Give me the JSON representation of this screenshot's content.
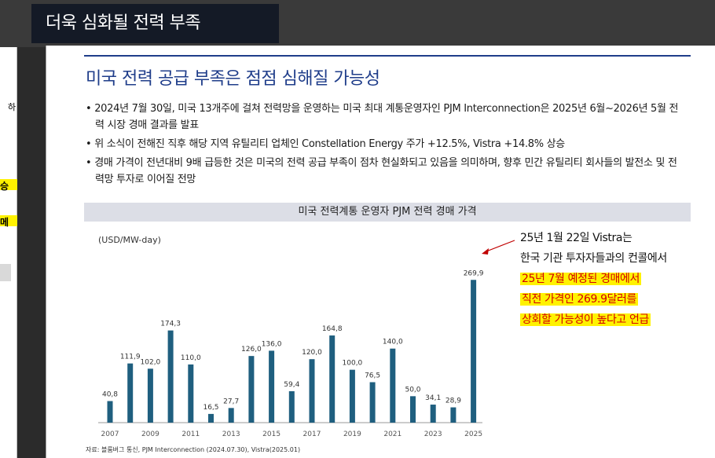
{
  "header": {
    "title": "더욱 심화될 전력 부족"
  },
  "left_panel": {
    "snip1": "하",
    "snip2": "승",
    "snip3": "메"
  },
  "slide": {
    "heading": "미국 전력 공급 부족은 점점 심해질 가능성",
    "bullets": [
      "2024년 7월 30일, 미국 13개주에 걸쳐 전력망을 운영하는 미국 최대 계통운영자인 PJM Interconnection은 2025년 6월~2026년 5월 전력 시장 경매 결과를 발표",
      "위 소식이 전해진 직후 해당 지역 유틸리티 업체인 Constellation Energy 주가 +12.5%, Vistra +14.8% 상승",
      "경매 가격이 전년대비 9배 급등한 것은 미국의 전력 공급 부족이 점차 현실화되고 있음을 의미하며, 향후 민간 유틸리티 회사들의 발전소 및 전력망 투자로 이어질 전망"
    ],
    "source_note": "자료: 블룸버그 통신, PJM Interconnection (2024.07.30), Vistra(2025.01)",
    "callout": {
      "lines": [
        "25년 1월 22일 Vistra는",
        "한국 기관 투자자들과의 컨콜에서"
      ],
      "highlight_lines": [
        "25년 7월 예정된 경매에서",
        "직전 가격인 269.9달러를",
        "상회할 가능성이 높다고 언급"
      ]
    }
  },
  "chart_data": {
    "type": "bar",
    "title": "미국 전력계통 운영자 PJM 전력 경매 가격",
    "unit_label": "(USD/MW-day)",
    "categories": [
      "2007",
      "2008",
      "2009",
      "2010",
      "2011",
      "2012",
      "2013",
      "2014",
      "2015",
      "2016",
      "2017",
      "2018",
      "2019",
      "2020",
      "2021",
      "2022",
      "2023",
      "2024",
      "2025"
    ],
    "values": [
      40.8,
      111.9,
      102.0,
      174.3,
      110.0,
      16.5,
      27.7,
      126.0,
      136.0,
      59.4,
      120.0,
      164.8,
      100.0,
      76.5,
      140.0,
      50.0,
      34.1,
      28.9,
      269.9
    ],
    "value_labels": [
      "40,8",
      "111,9",
      "102,0",
      "174,3",
      "110,0",
      "16,5",
      "27,7",
      "126,0",
      "136,0",
      "59,4",
      "120,0",
      "164,8",
      "100,0",
      "76,5",
      "140,0",
      "50,0",
      "34,1",
      "28,9",
      "269,9"
    ],
    "x_tick_labels": [
      "2007",
      "2009",
      "2011",
      "2013",
      "2015",
      "2017",
      "2019",
      "2021",
      "2023",
      "2025"
    ],
    "ylim": [
      0,
      300
    ],
    "bar_color": "#1f5f7f",
    "grid": false
  }
}
